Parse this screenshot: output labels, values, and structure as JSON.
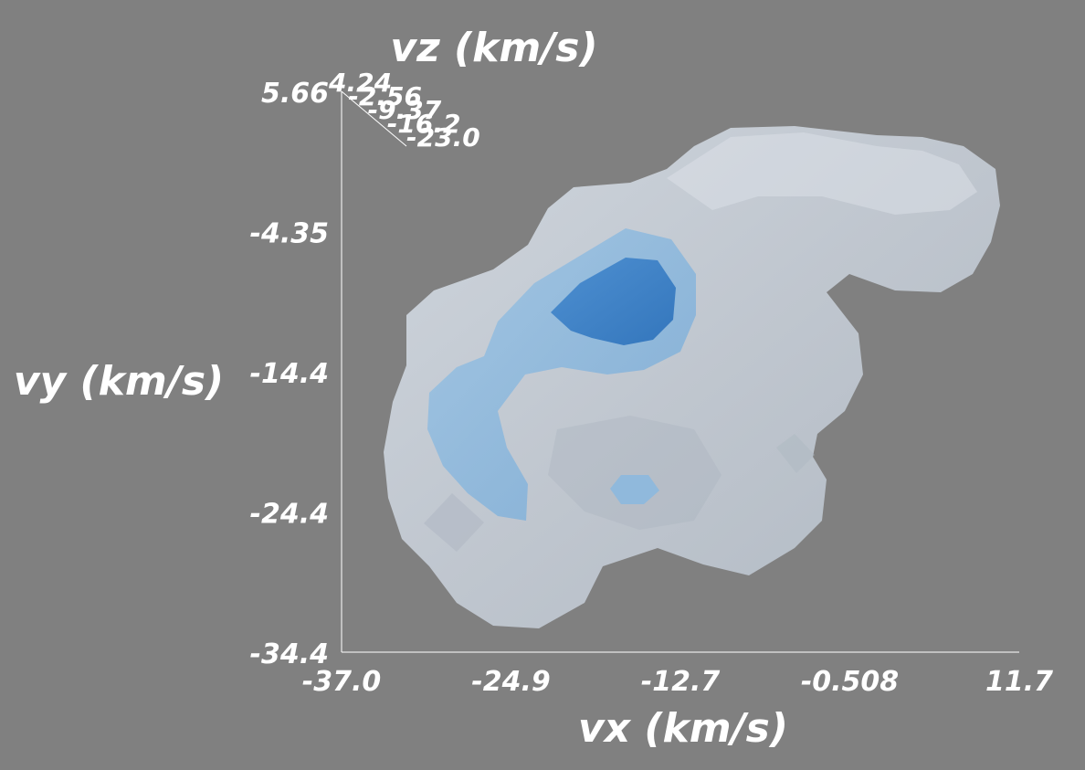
{
  "chart_data": {
    "type": "isosurface-3d",
    "background_color": "#808080",
    "axes": {
      "x": {
        "label": "vx (km/s)",
        "ticks": [
          "-37.0",
          "-24.9",
          "-12.7",
          "-0.508",
          "11.7"
        ],
        "range": [
          -37.0,
          11.7
        ]
      },
      "y": {
        "label": "vy (km/s)",
        "ticks": [
          "-34.4",
          "-24.4",
          "-14.4",
          "-4.35",
          "5.66"
        ],
        "range": [
          -34.4,
          5.66
        ]
      },
      "z": {
        "label": "vz (km/s)",
        "ticks": [
          "4.24",
          "-2.56",
          "-9.37",
          "-16.2",
          "-23.0"
        ],
        "range": [
          -23.0,
          4.24
        ]
      }
    },
    "surfaces": [
      {
        "level": "outer",
        "color": "#c4ccd6"
      },
      {
        "level": "middle",
        "color": "#86b4dc"
      },
      {
        "level": "inner",
        "color": "#3f82c8"
      }
    ]
  }
}
